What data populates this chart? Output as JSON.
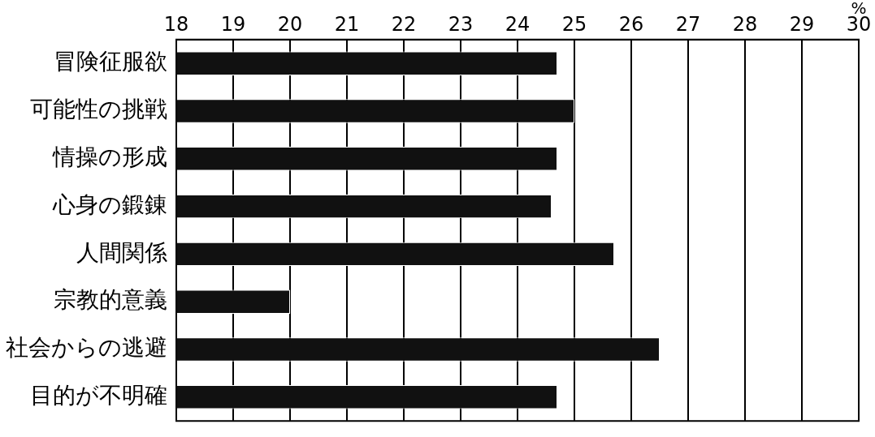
{
  "chart_data": {
    "type": "bar",
    "orientation": "horizontal",
    "xlabel": "%",
    "categories": [
      "冒険征服欲",
      "可能性の挑戦",
      "情操の形成",
      "心身の鍛錬",
      "人間関係",
      "宗教的意義",
      "社会からの逃避",
      "目的が不明確"
    ],
    "values": [
      24.7,
      25.0,
      24.7,
      24.6,
      25.7,
      20.0,
      26.5,
      24.7
    ],
    "color": "#111111",
    "xlim": [
      18,
      30
    ],
    "xticks": [
      18,
      19,
      20,
      21,
      22,
      23,
      24,
      25,
      26,
      27,
      28,
      29,
      30
    ],
    "grid": "x",
    "legend": false
  }
}
